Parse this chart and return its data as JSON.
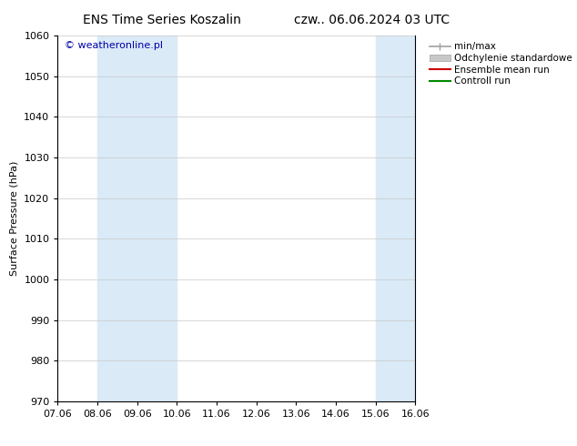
{
  "title_left": "ENS Time Series Koszalin",
  "title_right": "czw.. 06.06.2024 03 UTC",
  "ylabel": "Surface Pressure (hPa)",
  "ylim": [
    970,
    1060
  ],
  "yticks": [
    970,
    980,
    990,
    1000,
    1010,
    1020,
    1030,
    1040,
    1050,
    1060
  ],
  "xtick_labels": [
    "07.06",
    "08.06",
    "09.06",
    "10.06",
    "11.06",
    "12.06",
    "13.06",
    "14.06",
    "15.06",
    "16.06"
  ],
  "xtick_positions": [
    0,
    1,
    2,
    3,
    4,
    5,
    6,
    7,
    8,
    9
  ],
  "shaded_regions": [
    {
      "xmin": 1,
      "xmax": 2,
      "color": "#daeaf7"
    },
    {
      "xmin": 2,
      "xmax": 3,
      "color": "#daeaf7"
    },
    {
      "xmin": 8,
      "xmax": 9,
      "color": "#daeaf7"
    },
    {
      "xmin": 9,
      "xmax": 9.5,
      "color": "#daeaf7"
    }
  ],
  "legend_entries": [
    {
      "label": "min/max",
      "color": "#a0a0a0",
      "lw": 1.2,
      "type": "minmax"
    },
    {
      "label": "Odchylenie standardowe",
      "color": "#c8c8c8",
      "lw": 5,
      "type": "band"
    },
    {
      "label": "Ensemble mean run",
      "color": "#cc0000",
      "lw": 1.5,
      "type": "line"
    },
    {
      "label": "Controll run",
      "color": "#008800",
      "lw": 1.5,
      "type": "line"
    }
  ],
  "watermark": "© weatheronline.pl",
  "watermark_color": "#0000aa",
  "background_color": "#ffffff",
  "plot_bg_color": "#ffffff",
  "grid_color": "#c8c8c8",
  "title_fontsize": 10,
  "label_fontsize": 8,
  "tick_fontsize": 8
}
